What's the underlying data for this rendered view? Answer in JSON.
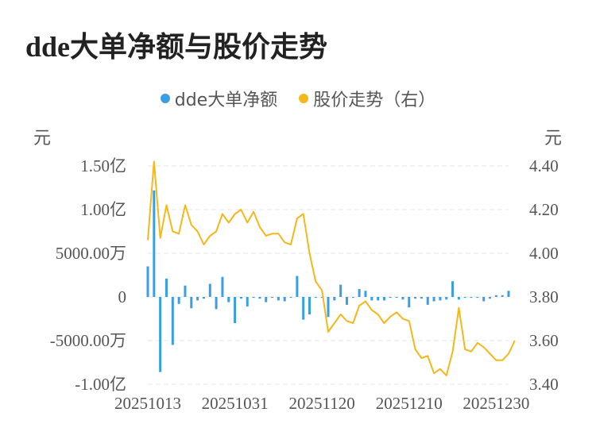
{
  "chart_data": {
    "type": "bar+line",
    "title": "dde大单净额与股价走势",
    "legend": [
      "dde大单净额",
      "股价走势（右）"
    ],
    "left_unit": "元",
    "right_unit": "元",
    "left_ticks": [
      "1.50亿",
      "1.00亿",
      "5000.00万",
      "0",
      "-5000.00万",
      "-1.00亿"
    ],
    "left_tick_values": [
      150000000,
      100000000,
      50000000,
      0,
      -50000000,
      -100000000
    ],
    "right_ticks": [
      "4.40",
      "4.20",
      "4.00",
      "3.80",
      "3.60",
      "3.40"
    ],
    "right_tick_values": [
      4.4,
      4.2,
      4.0,
      3.8,
      3.6,
      3.4
    ],
    "ylim_left": [
      -100000000,
      150000000
    ],
    "ylim_right": [
      3.4,
      4.4
    ],
    "x_labels": [
      "20251013",
      "20251031",
      "20251120",
      "20251210",
      "20251230"
    ],
    "x_label_indices": [
      0,
      14,
      28,
      42,
      56
    ],
    "bar_color": "#3a9ee4",
    "line_color": "#f5b81c",
    "series": [
      {
        "name": "dde大单净额",
        "axis": "left",
        "values": [
          35000000,
          122000000,
          -86000000,
          21000000,
          -55000000,
          -8000000,
          13000000,
          -13000000,
          -4000000,
          -2000000,
          15000000,
          -14000000,
          23000000,
          -6000000,
          -30000000,
          -2000000,
          -11000000,
          -1000000,
          -2000000,
          -6000000,
          -1000000,
          -4000000,
          -5000000,
          -1000000,
          24000000,
          -26000000,
          -20000000,
          -1000000,
          -1000000,
          -23000000,
          -4000000,
          14000000,
          -9000000,
          -1000000,
          9000000,
          7000000,
          -4000000,
          -4000000,
          -4000000,
          -1000000,
          -1000000,
          -3000000,
          -12000000,
          -2000000,
          -2000000,
          -9000000,
          -5000000,
          -4000000,
          -3000000,
          18000000,
          -3000000,
          -1000000,
          -1000000,
          -1000000,
          -5000000,
          -2000000,
          2000000,
          2000000,
          7000000
        ]
      },
      {
        "name": "股价走势（右）",
        "axis": "right",
        "values": [
          4.06,
          4.42,
          4.07,
          4.22,
          4.1,
          4.09,
          4.22,
          4.13,
          4.1,
          4.04,
          4.08,
          4.1,
          4.18,
          4.14,
          4.18,
          4.2,
          4.14,
          4.19,
          4.12,
          4.08,
          4.09,
          4.09,
          4.05,
          4.04,
          4.16,
          4.18,
          4.0,
          3.87,
          3.83,
          3.64,
          3.68,
          3.72,
          3.69,
          3.68,
          3.76,
          3.78,
          3.74,
          3.72,
          3.68,
          3.71,
          3.73,
          3.7,
          3.69,
          3.56,
          3.52,
          3.53,
          3.45,
          3.47,
          3.44,
          3.55,
          3.75,
          3.56,
          3.55,
          3.59,
          3.57,
          3.54,
          3.51,
          3.51,
          3.54,
          3.6
        ]
      }
    ]
  }
}
